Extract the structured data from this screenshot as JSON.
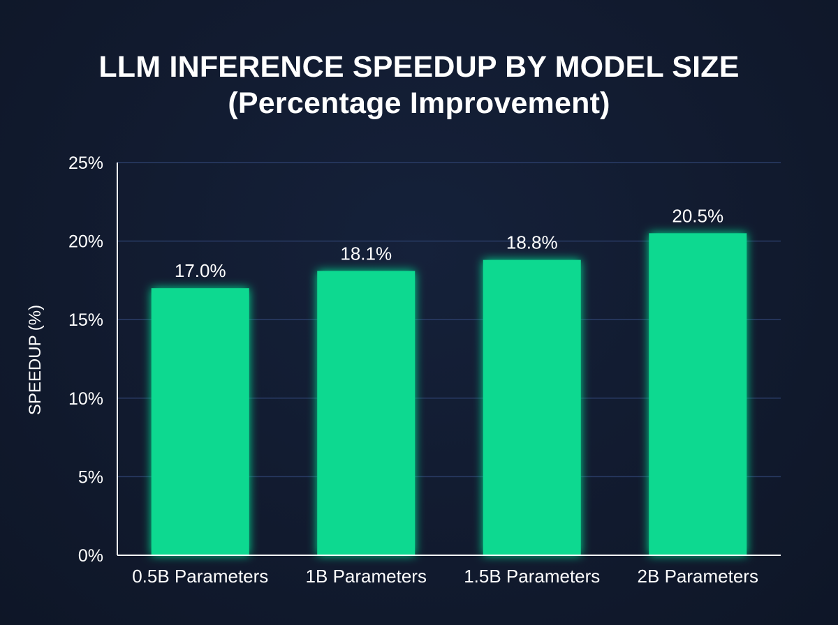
{
  "title_line1": "LLM INFERENCE SPEEDUP BY MODEL SIZE",
  "title_line2": "(Percentage Improvement)",
  "colors": {
    "background": "#111a2e",
    "bar": "#0ed990",
    "grid": "#2a3c66",
    "axis": "#ffffff",
    "text": "#ffffff"
  },
  "chart_data": {
    "type": "bar",
    "title": "LLM INFERENCE SPEEDUP BY MODEL SIZE (Percentage Improvement)",
    "xlabel": "",
    "ylabel": "SPEEDUP (%)",
    "categories": [
      "0.5B Parameters",
      "1B Parameters",
      "1.5B Parameters",
      "2B Parameters"
    ],
    "values": [
      17.0,
      18.1,
      18.8,
      20.5
    ],
    "value_labels": [
      "17.0%",
      "18.1%",
      "18.8%",
      "20.5%"
    ],
    "ylim": [
      0,
      25
    ],
    "yticks": [
      0,
      5,
      10,
      15,
      20,
      25
    ],
    "ytick_labels": [
      "0%",
      "5%",
      "10%",
      "15%",
      "20%",
      "25%"
    ],
    "grid": true,
    "legend": "none"
  }
}
